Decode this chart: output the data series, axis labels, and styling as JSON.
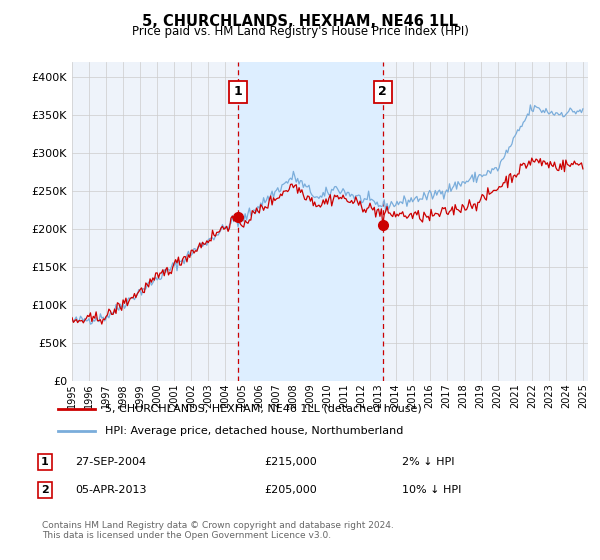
{
  "title": "5, CHURCHLANDS, HEXHAM, NE46 1LL",
  "subtitle": "Price paid vs. HM Land Registry's House Price Index (HPI)",
  "hpi_color": "#7aaddb",
  "price_color": "#cc0000",
  "marker_color": "#cc0000",
  "dashed_line_color": "#cc0000",
  "annotation_box_color": "#cc0000",
  "background_color": "#ffffff",
  "plot_bg_color": "#eef3fa",
  "shade_color": "#ddeeff",
  "grid_color": "#cccccc",
  "ylim": [
    0,
    420000
  ],
  "yticks": [
    0,
    50000,
    100000,
    150000,
    200000,
    250000,
    300000,
    350000,
    400000
  ],
  "legend_entries": [
    "5, CHURCHLANDS, HEXHAM, NE46 1LL (detached house)",
    "HPI: Average price, detached house, Northumberland"
  ],
  "transaction1": {
    "label": "1",
    "date": "27-SEP-2004",
    "price": 215000,
    "hpi_diff": "2% ↓ HPI"
  },
  "transaction2": {
    "label": "2",
    "date": "05-APR-2013",
    "price": 205000,
    "hpi_diff": "10% ↓ HPI"
  },
  "footer": "Contains HM Land Registry data © Crown copyright and database right 2024.\nThis data is licensed under the Open Government Licence v3.0.",
  "x_start_year": 1995,
  "x_end_year": 2025
}
